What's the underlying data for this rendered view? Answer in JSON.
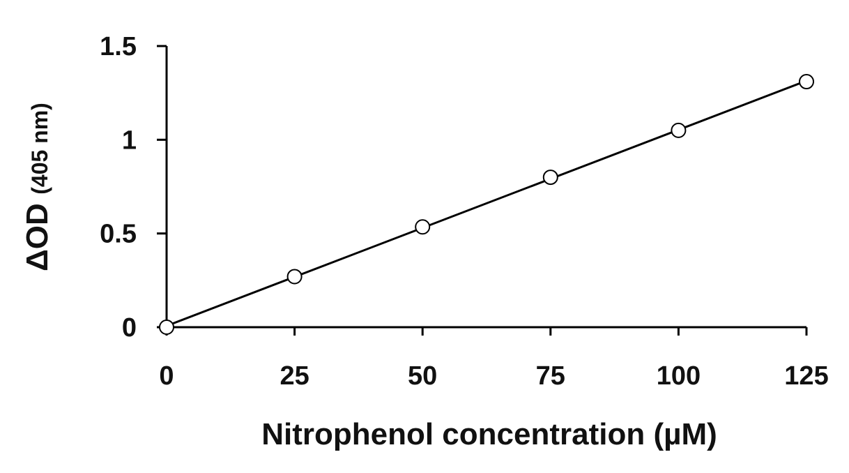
{
  "chart_data": {
    "type": "scatter",
    "title": "",
    "xlabel": "Nitrophenol concentration (µM)",
    "ylabel_main": "ΔOD",
    "ylabel_unit": "(405 nm)",
    "xlim": [
      0,
      125
    ],
    "ylim": [
      0,
      1.5
    ],
    "x_ticks": [
      0,
      25,
      50,
      75,
      100,
      125
    ],
    "x_tick_labels": [
      "0",
      "25",
      "50",
      "75",
      "100",
      "125"
    ],
    "y_ticks": [
      0,
      0.5,
      1,
      1.5
    ],
    "y_tick_labels": [
      "0",
      "0.5",
      "1",
      "1.5"
    ],
    "grid": false,
    "series": [
      {
        "x": [
          0,
          25,
          50,
          75,
          100,
          125
        ],
        "y": [
          0,
          0.27,
          0.535,
          0.8,
          1.05,
          1.31
        ],
        "marker": "open-circle",
        "trendline": "linear",
        "color": "#000000"
      }
    ]
  }
}
